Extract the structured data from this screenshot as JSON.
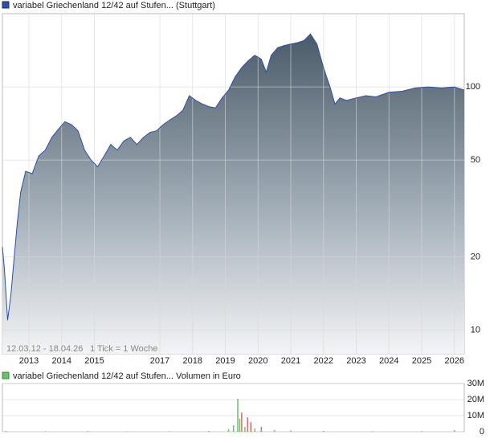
{
  "chart_data": [
    {
      "type": "area",
      "title": "variabel Griechenland 12/42 auf Stufen... (Stuttgart)",
      "annotations": [
        "12.03.12 - 18.04.26",
        "1 Tick = 1 Woche"
      ],
      "color": "#2c4fa8",
      "log_scale": true,
      "grid": true,
      "x": [
        2012.19,
        2012.25,
        2012.35,
        2012.45,
        2012.55,
        2012.65,
        2012.75,
        2012.9,
        2013.1,
        2013.3,
        2013.5,
        2013.7,
        2013.9,
        2014.1,
        2014.3,
        2014.5,
        2014.7,
        2014.9,
        2015.1,
        2015.3,
        2015.5,
        2015.7,
        2015.9,
        2016.1,
        2016.3,
        2016.5,
        2016.7,
        2016.9,
        2017.1,
        2017.3,
        2017.5,
        2017.7,
        2017.9,
        2018.1,
        2018.3,
        2018.5,
        2018.7,
        2018.9,
        2019.1,
        2019.3,
        2019.5,
        2019.7,
        2019.9,
        2020.1,
        2020.25,
        2020.4,
        2020.6,
        2020.8,
        2021.0,
        2021.2,
        2021.4,
        2021.6,
        2021.8,
        2022.0,
        2022.2,
        2022.35,
        2022.5,
        2022.7,
        2023.0,
        2023.3,
        2023.6,
        2024.0,
        2024.4,
        2024.8,
        2025.2,
        2025.6,
        2026.0,
        2026.3
      ],
      "values": [
        22,
        18,
        11,
        14,
        20,
        28,
        37,
        45,
        44,
        52,
        55,
        62,
        67,
        72,
        70,
        66,
        55,
        50,
        47,
        52,
        58,
        55,
        60,
        62,
        58,
        62,
        65,
        66,
        70,
        73,
        76,
        80,
        92,
        88,
        85,
        83,
        82,
        90,
        97,
        110,
        120,
        128,
        135,
        130,
        115,
        135,
        145,
        148,
        150,
        152,
        155,
        165,
        150,
        120,
        100,
        85,
        90,
        88,
        90,
        92,
        91,
        95,
        96,
        99,
        100,
        99,
        100,
        97
      ],
      "xlim": [
        2012.19,
        2026.3
      ],
      "xticks": [
        2013,
        2014,
        2015,
        2017,
        2018,
        2019,
        2020,
        2021,
        2022,
        2023,
        2024,
        2025,
        2026
      ],
      "ylim": [
        8,
        200
      ],
      "yticks": [
        10,
        20,
        50,
        100
      ]
    },
    {
      "type": "bar",
      "title": "variabel Griechenland 12/42 auf Stufen... Volumen in Euro",
      "legend_color": "#6cbf6c",
      "grid": true,
      "x": [
        2012.3,
        2013.5,
        2014.8,
        2016.0,
        2017.3,
        2018.5,
        2019.1,
        2019.25,
        2019.38,
        2019.44,
        2019.5,
        2019.6,
        2019.68,
        2019.78,
        2019.9,
        2020.1,
        2020.5,
        2021.0,
        2022.0,
        2023.5,
        2025.0,
        2026.0
      ],
      "values": [
        500000,
        300000,
        400000,
        200000,
        300000,
        500000,
        1500000,
        4000000,
        20500000,
        8000000,
        12000000,
        3000000,
        9000000,
        6000000,
        2000000,
        3000000,
        1000000,
        800000,
        500000,
        300000,
        400000,
        1000000
      ],
      "colors": [
        "#6cbf6c",
        "#6cbf6c",
        "#6cbf6c",
        "#6cbf6c",
        "#6cbf6c",
        "#6cbf6c",
        "#6cbf6c",
        "#6cbf6c",
        "#6cbf6c",
        "#6cbf6c",
        "#d96a6a",
        "#6cbf6c",
        "#d96a6a",
        "#d96a6a",
        "#6cbf6c",
        "#d96a6a",
        "#6cbf6c",
        "#6cbf6c",
        "#6cbf6c",
        "#6cbf6c",
        "#6cbf6c",
        "#6cbf6c"
      ],
      "xlim": [
        2012.19,
        2026.3
      ],
      "ylim": [
        0,
        30000000
      ],
      "yticks": [
        0,
        {
          "value": 10000000,
          "label": "10M"
        },
        {
          "value": 20000000,
          "label": "20M"
        },
        {
          "value": 30000000,
          "label": "30M"
        }
      ]
    }
  ]
}
